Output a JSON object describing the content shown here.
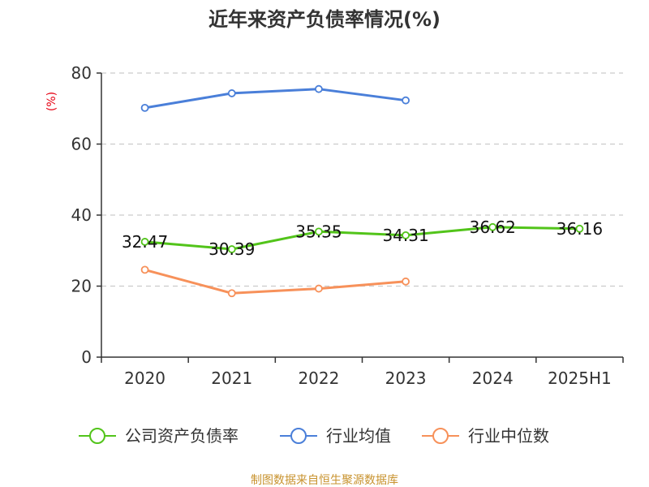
{
  "chart_data": {
    "type": "line",
    "title": "近年来资产负债率情况(%)",
    "ylabel": "(%)",
    "categories": [
      "2020",
      "2021",
      "2022",
      "2023",
      "2024",
      "2025H1"
    ],
    "ylim": [
      0,
      80
    ],
    "yticks": [
      0,
      20,
      40,
      60,
      80
    ],
    "grid": true,
    "legend_position": "bottom",
    "series": [
      {
        "name": "公司资产负债率",
        "color": "#52c41a",
        "labels": true,
        "values": [
          32.47,
          30.39,
          35.35,
          34.31,
          36.62,
          36.16
        ]
      },
      {
        "name": "行业均值",
        "color": "#4a7fd9",
        "labels": false,
        "values": [
          70.2,
          74.3,
          75.5,
          72.3,
          null,
          null
        ]
      },
      {
        "name": "行业中位数",
        "color": "#f7915a",
        "labels": false,
        "values": [
          24.6,
          18.0,
          19.3,
          21.3,
          null,
          null
        ]
      }
    ]
  },
  "footer": "制图数据来自恒生聚源数据库"
}
